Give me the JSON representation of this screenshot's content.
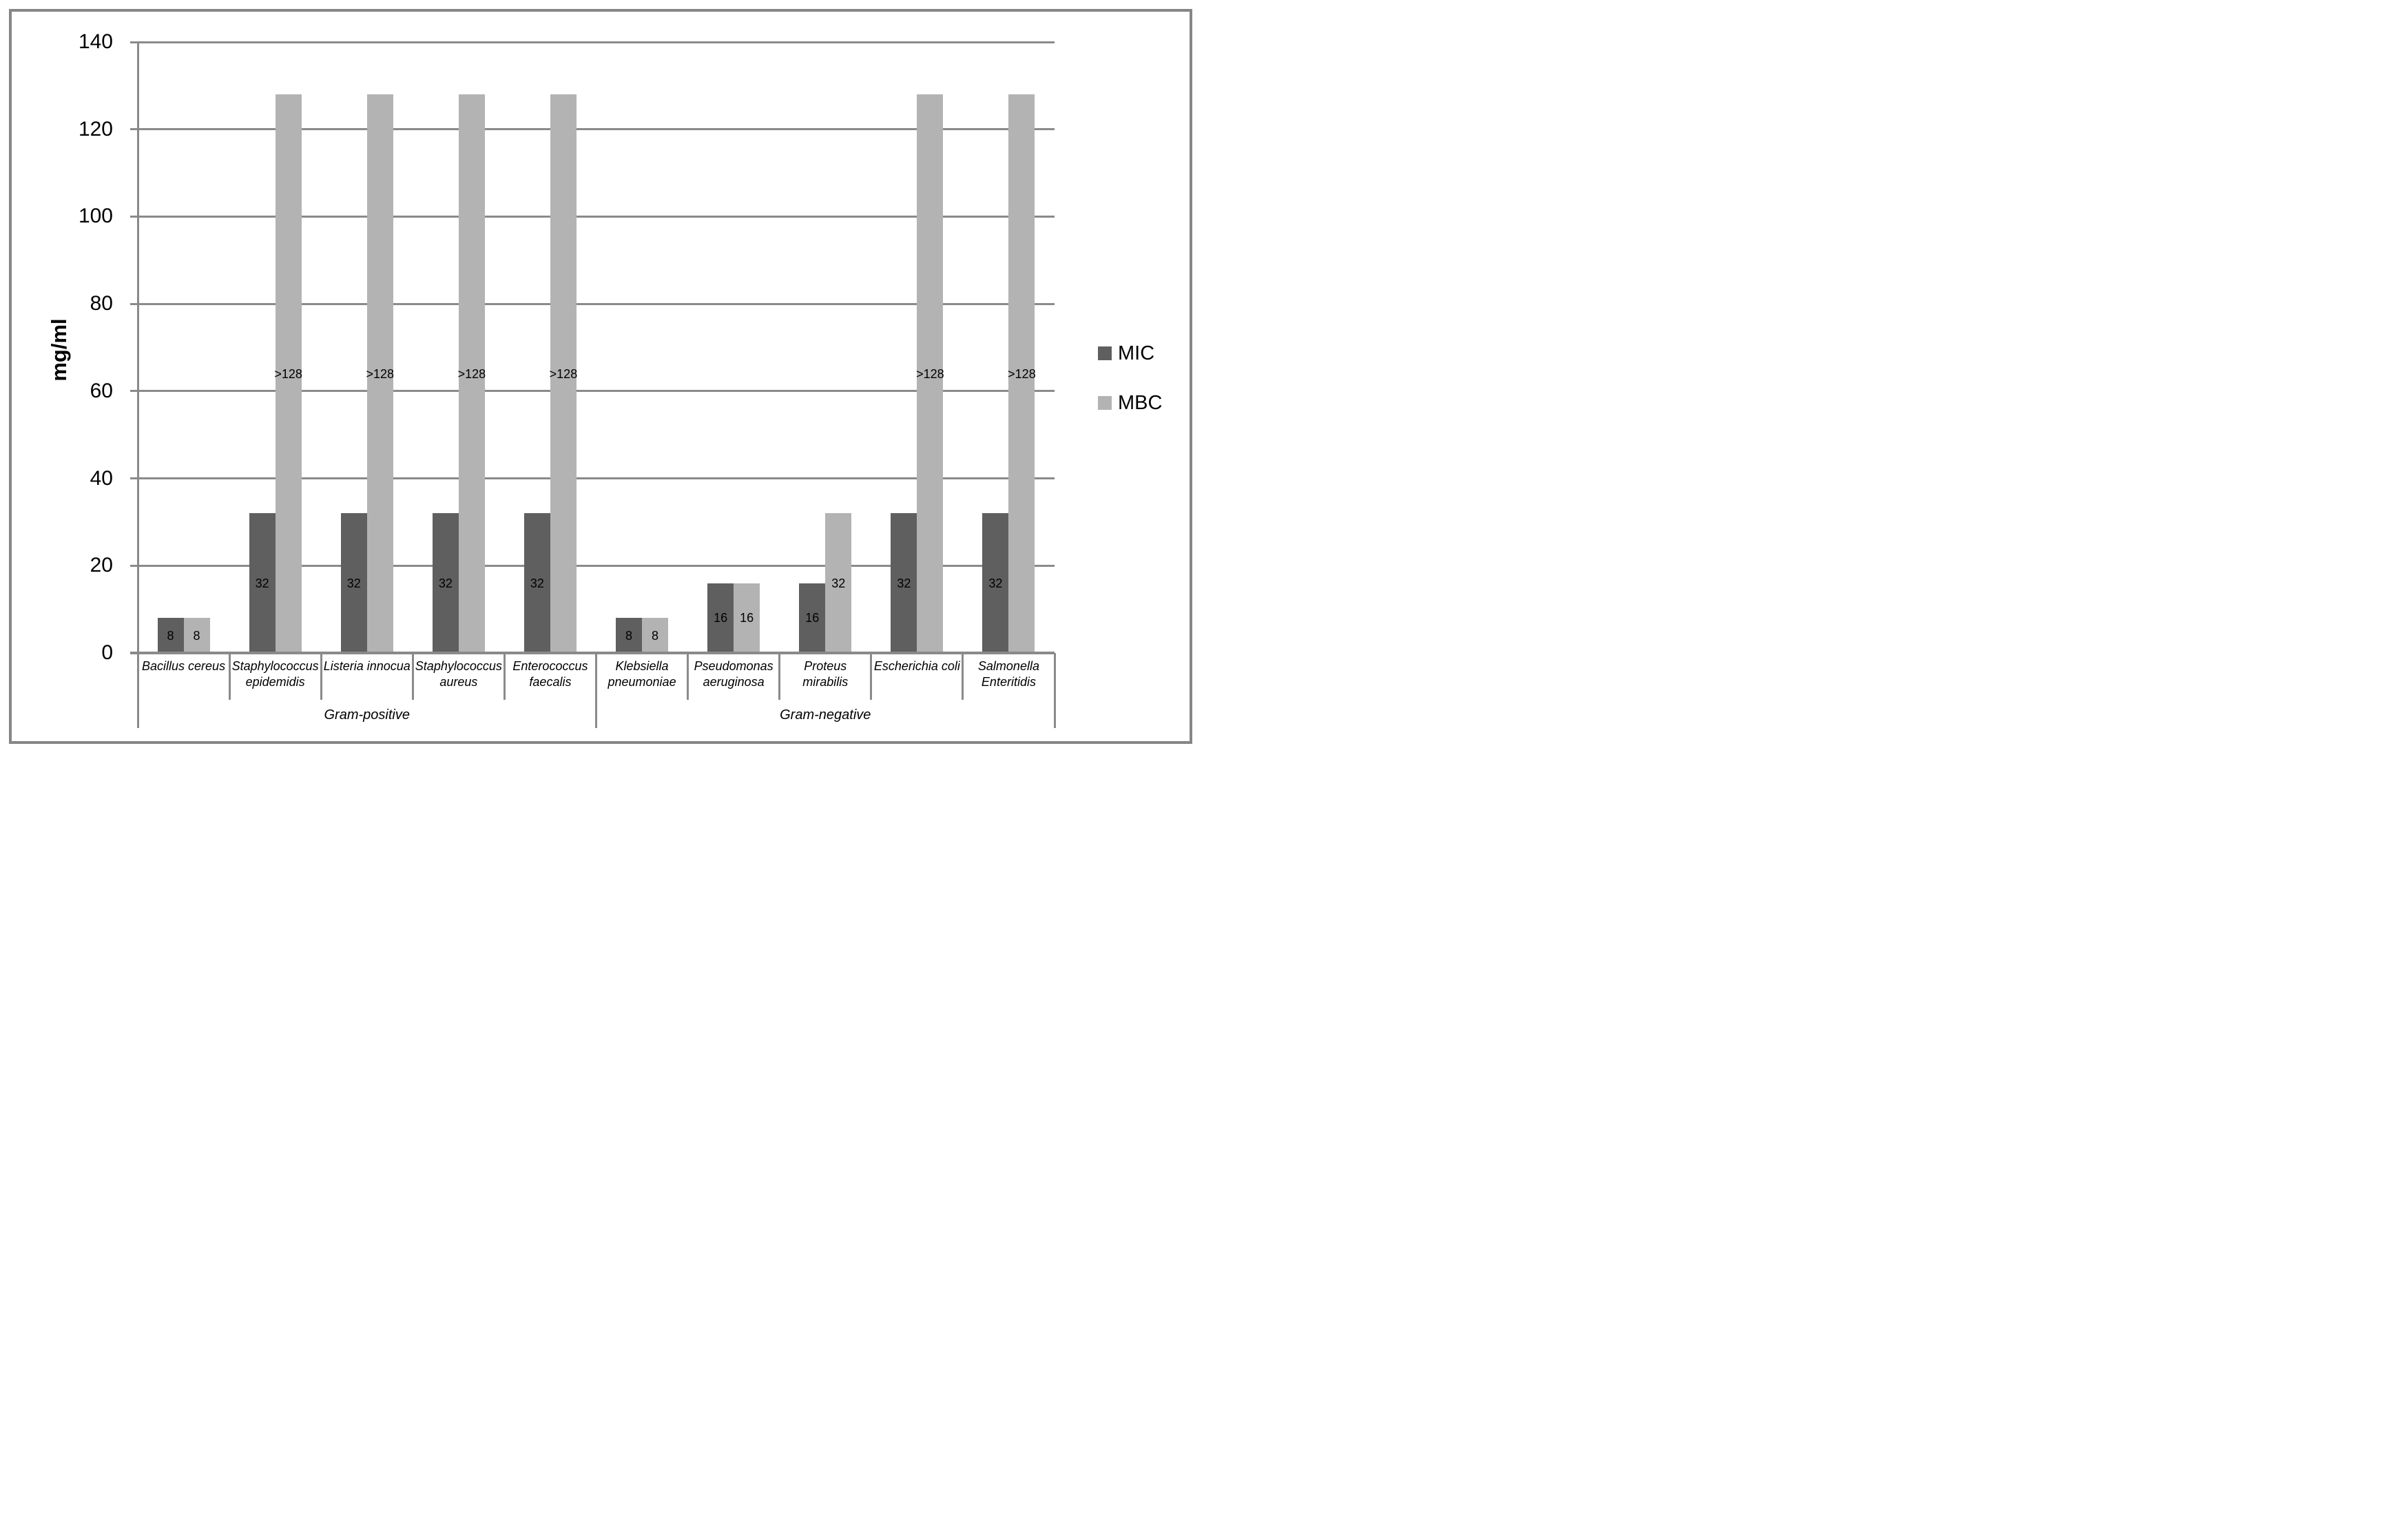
{
  "chart_data": {
    "type": "bar",
    "title": "",
    "ylabel": "mg/ml",
    "xlabel": "",
    "ylim": [
      0,
      140
    ],
    "yticks": [
      0,
      20,
      40,
      60,
      80,
      100,
      120,
      140
    ],
    "grid": true,
    "legend_position": "right",
    "groups": [
      {
        "label": "Gram-positive",
        "span": [
          0,
          5
        ]
      },
      {
        "label": "Gram-negative",
        "span": [
          5,
          10
        ]
      }
    ],
    "categories": [
      "Bacillus cereus",
      "Staphylococcus epidemidis",
      "Listeria innocua",
      "Staphylococcus aureus",
      "Enterococcus faecalis",
      "Klebsiella pneumoniae",
      "Pseudomonas aeruginosa",
      "Proteus mirabilis",
      "Escherichia coli",
      "Salmonella Enteritidis"
    ],
    "category_label_lines": [
      [
        "Bacillus cereus"
      ],
      [
        "Staphylococcus",
        "epidemidis"
      ],
      [
        "Listeria innocua"
      ],
      [
        "Staphylococcus",
        "aureus"
      ],
      [
        "Enterococcus",
        "faecalis"
      ],
      [
        "Klebsiella",
        "pneumoniae"
      ],
      [
        "Pseudomonas",
        "aeruginosa"
      ],
      [
        "Proteus",
        "mirabilis"
      ],
      [
        "Escherichia coli"
      ],
      [
        "Salmonella",
        "Enteritidis"
      ]
    ],
    "series": [
      {
        "name": "MIC",
        "color": "#5f5f5f",
        "values": [
          8,
          32,
          32,
          32,
          32,
          8,
          16,
          16,
          32,
          32
        ],
        "value_labels": [
          "8",
          "32",
          "32",
          "32",
          "32",
          "8",
          "16",
          "16",
          "32",
          "32"
        ]
      },
      {
        "name": "MBC",
        "color": "#b3b3b3",
        "values": [
          8,
          128,
          128,
          128,
          128,
          8,
          16,
          32,
          128,
          128
        ],
        "value_labels": [
          "8",
          ">128",
          ">128",
          ">128",
          ">128",
          "8",
          "16",
          "32",
          ">128",
          ">128"
        ]
      }
    ],
    "colors": {
      "grid": "#8a8a8a",
      "axis": "#8a8a8a",
      "frame": "#868686",
      "text": "#000000"
    }
  }
}
